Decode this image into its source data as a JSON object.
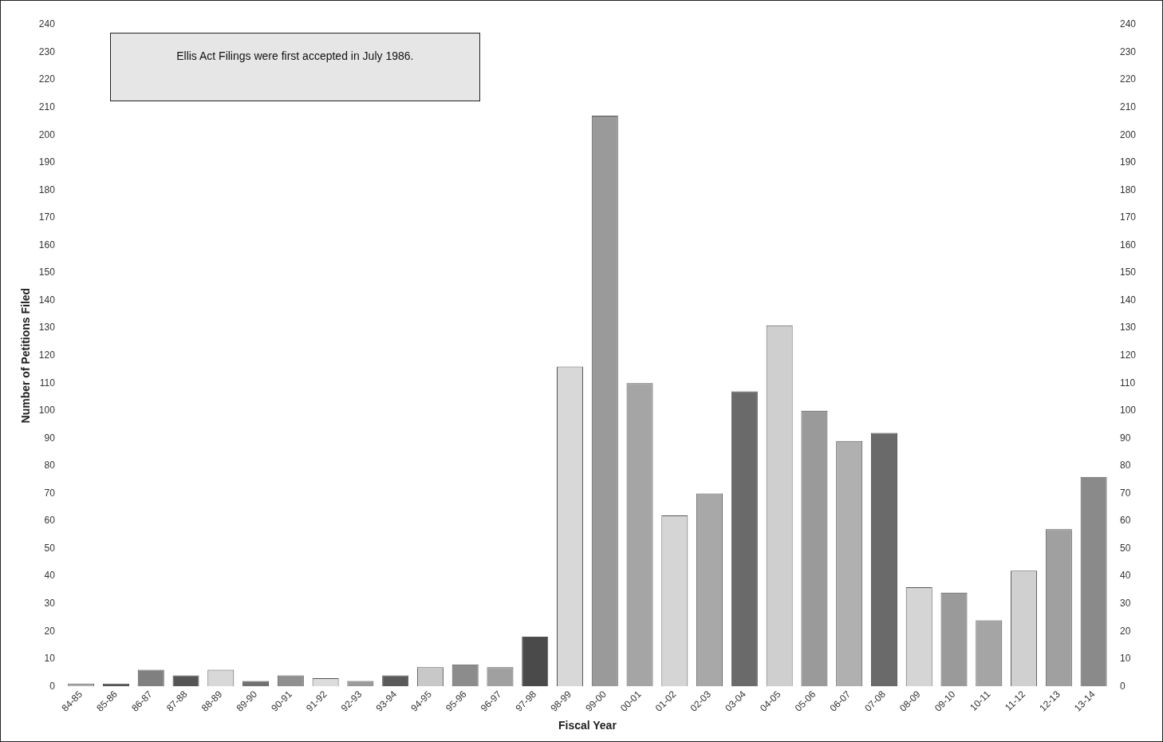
{
  "chart_data": {
    "type": "bar",
    "xlabel": "Fiscal Year",
    "ylabel": "Number of Petitions Filed",
    "annotations": [
      "Ellis Act Filings were first accepted in July 1986."
    ],
    "categories": [
      "84-85",
      "85-86",
      "86-87",
      "87-88",
      "88-89",
      "89-90",
      "90-91",
      "91-92",
      "92-93",
      "93-94",
      "94-95",
      "95-96",
      "96-97",
      "97-98",
      "98-99",
      "99-00",
      "00-01",
      "01-02",
      "02-03",
      "03-04",
      "04-05",
      "05-06",
      "06-07",
      "07-08",
      "08-09",
      "09-10",
      "10-11",
      "11-12",
      "12-13",
      "13-14"
    ],
    "values": [
      1,
      1,
      6,
      4,
      6,
      2,
      4,
      3,
      2,
      4,
      7,
      8,
      7,
      18,
      116,
      207,
      110,
      62,
      70,
      107,
      131,
      100,
      89,
      92,
      36,
      34,
      24,
      42,
      57,
      76
    ],
    "colors": [
      "#b0b0b0",
      "#555555",
      "#808080",
      "#555555",
      "#d8d8d8",
      "#707070",
      "#909090",
      "#dcdcdc",
      "#9a9a9a",
      "#5a5a5a",
      "#c8c8c8",
      "#8c8c8c",
      "#a0a0a0",
      "#4a4a4a",
      "#d8d8d8",
      "#9a9a9a",
      "#a5a5a5",
      "#d5d5d5",
      "#a8a8a8",
      "#6a6a6a",
      "#cfcfcf",
      "#9a9a9a",
      "#b0b0b0",
      "#6a6a6a",
      "#d5d5d5",
      "#9a9a9a",
      "#a5a5a5",
      "#d0d0d0",
      "#a0a0a0",
      "#8a8a8a"
    ],
    "ylim": [
      0,
      240
    ],
    "yticks": [
      0,
      10,
      20,
      30,
      40,
      50,
      60,
      70,
      80,
      90,
      100,
      110,
      120,
      130,
      140,
      150,
      160,
      170,
      180,
      190,
      200,
      210,
      220,
      230,
      240
    ],
    "y2lim": [
      0,
      240
    ],
    "y2ticks": [
      0,
      10,
      20,
      30,
      40,
      50,
      60,
      70,
      80,
      90,
      100,
      110,
      120,
      130,
      140,
      150,
      160,
      170,
      180,
      190,
      200,
      210,
      220,
      230,
      240
    ],
    "grid": false,
    "legend": false
  }
}
